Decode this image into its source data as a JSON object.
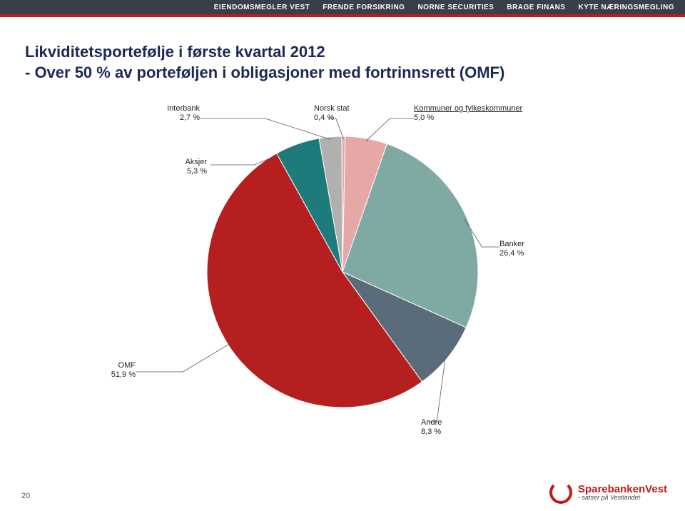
{
  "top_nav": {
    "items": [
      "EIENDOMSMEGLER VEST",
      "FRENDE FORSIKRING",
      "NORNE SECURITIES",
      "BRAGE FINANS",
      "KYTE NÆRINGSMEGLING"
    ],
    "bg_color": "#3a3d4a",
    "text_color": "#ffffff"
  },
  "accent_strip_color": "#c21a1a",
  "title": {
    "line1": "Likviditetsportefølje i første kvartal 2012",
    "line2": "- Over 50 % av porteføljen i obligasjoner med fortrinnsrett (OMF)",
    "color": "#1b2a55",
    "fontsize": 22
  },
  "pie_chart": {
    "type": "pie",
    "background_color": "#ffffff",
    "stroke_color": "#ffffff",
    "stroke_width": 1,
    "label_fontsize": 11,
    "label_color": "#222222",
    "segments": [
      {
        "key": "interbank",
        "label_line1": "Interbank",
        "label_line2": "2,7 %",
        "value": 2.7,
        "color": "#b0b0b0"
      },
      {
        "key": "norsk_stat",
        "label_line1": "Norsk stat",
        "label_line2": "0,4 %",
        "value": 0.4,
        "color": "#e7a7a7"
      },
      {
        "key": "kommuner",
        "label_line1": "Kommuner og fylkeskommuner",
        "label_line2": "5,0 %",
        "value": 5.0,
        "color": "#e7a7a7"
      },
      {
        "key": "banker",
        "label_line1": "Banker",
        "label_line2": "26,4 %",
        "value": 26.4,
        "color": "#7fa9a3"
      },
      {
        "key": "andre",
        "label_line1": "Andre",
        "label_line2": "8,3 %",
        "value": 8.3,
        "color": "#5a6b7a"
      },
      {
        "key": "omf",
        "label_line1": "OMF",
        "label_line2": "51,9 %",
        "value": 51.9,
        "color": "#b51f1f"
      },
      {
        "key": "aksjer",
        "label_line1": "Aksjer",
        "label_line2": "5,3 %",
        "value": 5.3,
        "color": "#1e7b7b"
      }
    ]
  },
  "footer": {
    "page_number": "20",
    "logo_name": "SparebankenVest",
    "logo_tagline": "- satser på Vestlandet",
    "logo_color": "#c21a1a"
  }
}
